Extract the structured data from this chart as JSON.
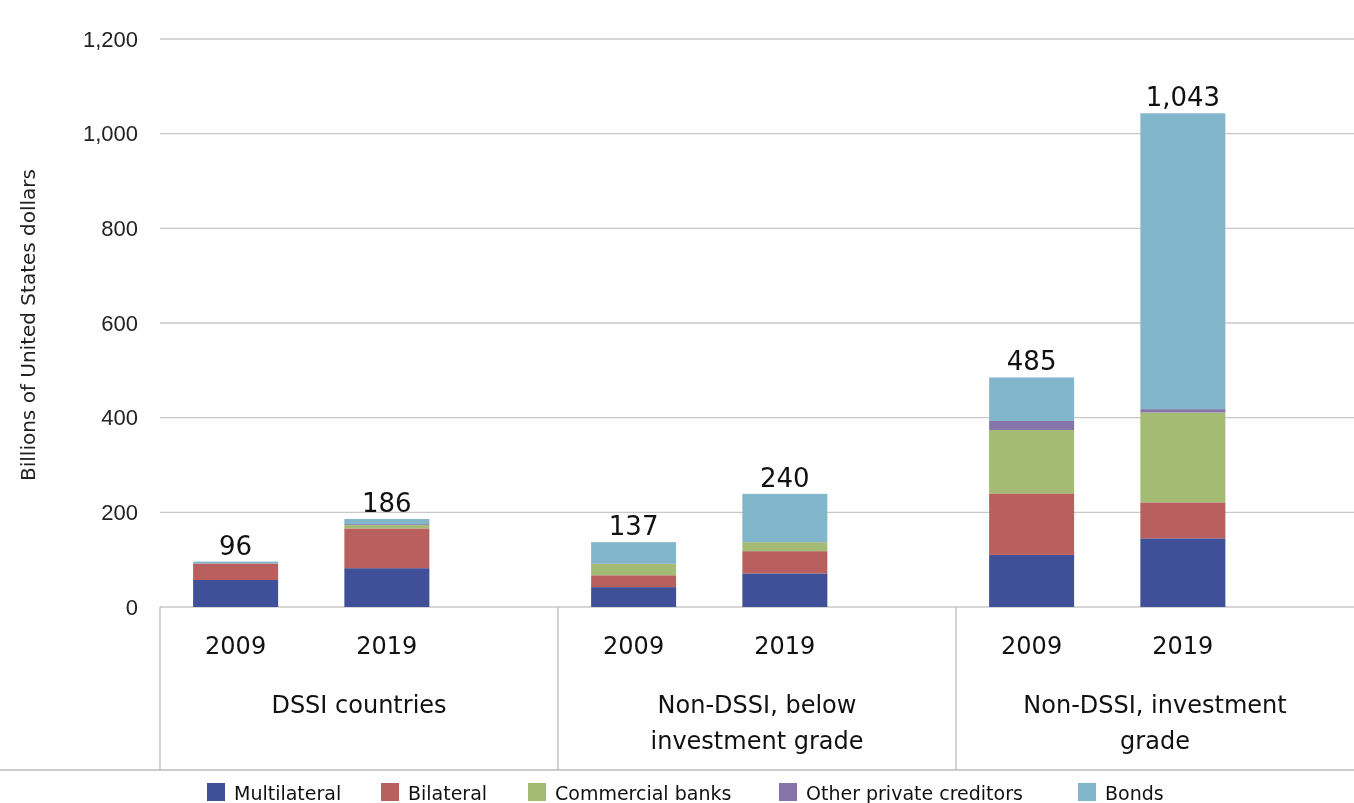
{
  "chart_data": {
    "type": "bar",
    "stacked": true,
    "ylabel": "Billions of United States dollars",
    "categories": [
      "2009",
      "2019",
      "2009",
      "2019",
      "2009",
      "2019"
    ],
    "series": [
      {
        "name": "Multilateral",
        "color": "#3f4f98",
        "values": [
          57,
          82,
          42,
          71,
          110,
          145
        ]
      },
      {
        "name": "Bilateral",
        "color": "#b9605f",
        "values": [
          34,
          84,
          25,
          47,
          130,
          76
        ]
      },
      {
        "name": "Commercial banks",
        "color": "#a3bb72",
        "values": [
          1,
          7,
          24,
          19,
          134,
          190
        ]
      },
      {
        "name": "Other private creditors",
        "color": "#8674aa",
        "values": [
          1,
          2,
          1,
          null,
          19,
          7
        ]
      },
      {
        "name": "Bonds",
        "color": "#82b6ca",
        "values": [
          3,
          11,
          45,
          102,
          92,
          625
        ]
      }
    ],
    "totals": [
      "96",
      "186",
      "137",
      "240",
      "485",
      "1,043"
    ],
    "annotations": [
      "DSSI countries",
      "Non-DSSI, below investment grade",
      "Non-DSSI, investment grade"
    ],
    "ylim": [
      0,
      1200
    ],
    "yticks": [
      0,
      200,
      400,
      600,
      800,
      {
        "value": 1000,
        "label": "1,000"
      },
      {
        "value": 1200,
        "label": "1,200"
      }
    ],
    "grid": "y",
    "legend": "bottom"
  }
}
